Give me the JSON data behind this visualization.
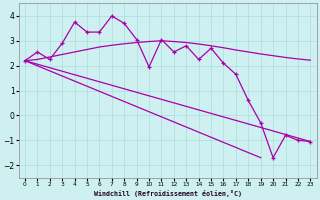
{
  "xlabel": "Windchill (Refroidissement éolien,°C)",
  "bg_color": "#cff0f0",
  "grid_color": "#aadddd",
  "line_color": "#aa00aa",
  "xlim": [
    -0.5,
    23.5
  ],
  "ylim": [
    -2.5,
    4.5
  ],
  "xticks": [
    0,
    1,
    2,
    3,
    4,
    5,
    6,
    7,
    8,
    9,
    10,
    11,
    12,
    13,
    14,
    15,
    16,
    17,
    18,
    19,
    20,
    21,
    22,
    23
  ],
  "yticks": [
    -2,
    -1,
    0,
    1,
    2,
    3,
    4
  ],
  "jagged_x": [
    0,
    1,
    2,
    3,
    4,
    5,
    6,
    7,
    8,
    9,
    10,
    11,
    12,
    13,
    14,
    15,
    16,
    17,
    18,
    19,
    20,
    21,
    22,
    23
  ],
  "jagged_y": [
    2.2,
    2.55,
    2.25,
    2.9,
    3.75,
    3.35,
    3.35,
    4.0,
    3.7,
    3.05,
    1.95,
    3.05,
    2.55,
    2.8,
    2.25,
    2.7,
    2.1,
    1.65,
    0.6,
    -0.3,
    -1.7,
    -0.8,
    -1.0,
    -1.05
  ],
  "smooth_x": [
    0,
    1,
    2,
    3,
    4,
    5,
    6,
    7,
    8,
    9,
    10,
    11,
    12,
    13,
    14,
    15,
    16,
    17,
    18,
    19,
    20,
    21,
    22,
    23
  ],
  "smooth_y": [
    2.2,
    2.25,
    2.35,
    2.45,
    2.55,
    2.65,
    2.75,
    2.82,
    2.88,
    2.93,
    2.97,
    3.0,
    2.97,
    2.93,
    2.87,
    2.8,
    2.72,
    2.63,
    2.55,
    2.47,
    2.4,
    2.33,
    2.27,
    2.22
  ],
  "line1_x": [
    0,
    23
  ],
  "line1_y": [
    2.2,
    -1.05
  ],
  "line2_x": [
    0,
    19
  ],
  "line2_y": [
    2.2,
    -1.7
  ]
}
